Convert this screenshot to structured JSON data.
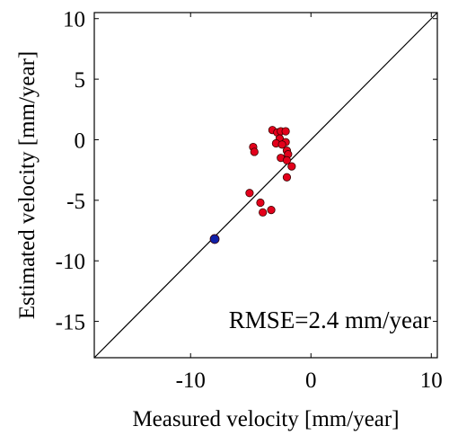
{
  "chart_data": {
    "type": "scatter",
    "title": "",
    "xlabel": "Measured velocity [mm/year]",
    "ylabel": "Estimated velocity [mm/year]",
    "xlim": [
      -18,
      10.5
    ],
    "ylim": [
      -18,
      10.5
    ],
    "xticks": [
      -10,
      0,
      10
    ],
    "yticks": [
      10,
      5,
      0,
      -5,
      -10,
      -15
    ],
    "xtick_labels": [
      "-10",
      "0",
      "10"
    ],
    "ytick_labels": [
      "10",
      "5",
      "0",
      "-5",
      "-10",
      "-15"
    ],
    "grid": false,
    "legend": "none",
    "reference_line": "y = x",
    "annotation": "RMSE=2.4 mm/year",
    "series": [
      {
        "color": "#e3001b",
        "points": [
          [
            -3.2,
            0.8
          ],
          [
            -2.8,
            0.6
          ],
          [
            -2.5,
            0.7
          ],
          [
            -2.1,
            0.7
          ],
          [
            -2.6,
            0.1
          ],
          [
            -2.1,
            -0.2
          ],
          [
            -2.9,
            -0.3
          ],
          [
            -2.4,
            -0.4
          ],
          [
            -2.0,
            -0.9
          ],
          [
            -1.9,
            -1.2
          ],
          [
            -2.5,
            -1.5
          ],
          [
            -2.0,
            -1.7
          ],
          [
            -1.6,
            -2.2
          ],
          [
            -2.0,
            -3.1
          ],
          [
            -4.8,
            -0.6
          ],
          [
            -4.7,
            -1.0
          ],
          [
            -5.1,
            -4.4
          ],
          [
            -4.2,
            -5.2
          ],
          [
            -4.0,
            -6.0
          ],
          [
            -3.3,
            -5.8
          ]
        ]
      },
      {
        "color": "#1020a8",
        "points": [
          [
            -8.0,
            -8.2
          ]
        ]
      }
    ]
  }
}
